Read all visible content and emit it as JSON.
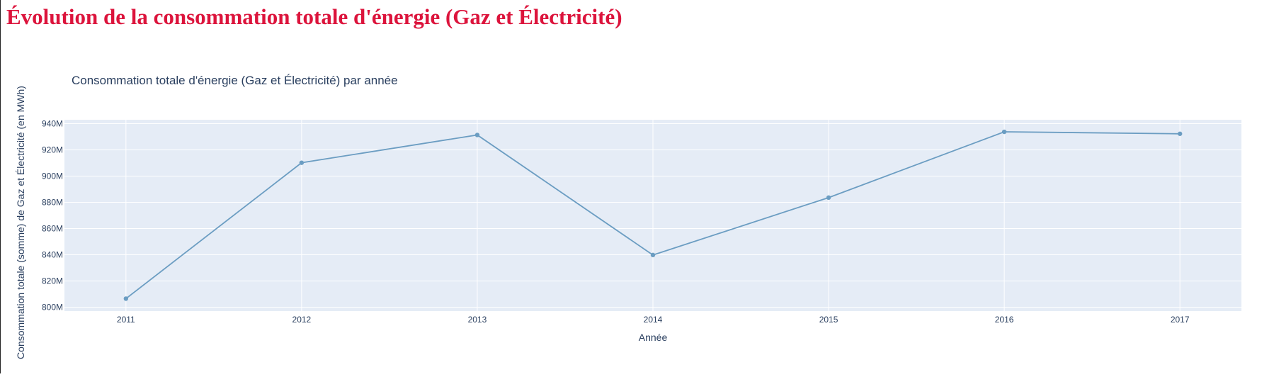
{
  "page": {
    "heading": "Évolution de la consommation totale d'énergie (Gaz et Électricité)",
    "heading_color": "#dc143c"
  },
  "chart_data": {
    "type": "line",
    "title": "Consommation totale d'énergie (Gaz et Électricité) par année",
    "xlabel": "Année",
    "ylabel": "Consommation totale (somme) de Gaz et Électricité (en MWh)",
    "x": [
      2011,
      2012,
      2013,
      2014,
      2015,
      2016,
      2017
    ],
    "x_tick_labels": [
      "2011",
      "2012",
      "2013",
      "2014",
      "2015",
      "2016",
      "2017"
    ],
    "series": [
      {
        "values": [
          806500000,
          910200000,
          931400000,
          839800000,
          883600000,
          933800000,
          932300000
        ],
        "color": "#6b9dc2",
        "mode": "lines+markers"
      }
    ],
    "y_ticks": [
      800000000,
      820000000,
      840000000,
      860000000,
      880000000,
      900000000,
      920000000,
      940000000
    ],
    "y_tick_labels": [
      "800M",
      "820M",
      "840M",
      "860M",
      "880M",
      "900M",
      "920M",
      "940M"
    ],
    "ylim": [
      797000000,
      943000000
    ],
    "xlim": [
      2010.65,
      2017.35
    ],
    "grid": true,
    "plot_background": "#e5ecf6",
    "grid_color": "#ffffff",
    "text_color": "#2a3f5f"
  }
}
